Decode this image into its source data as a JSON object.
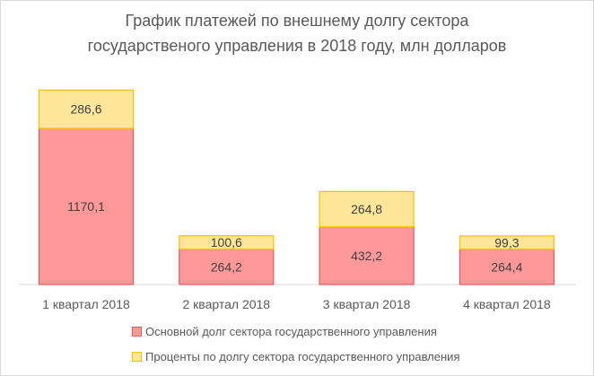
{
  "chart_data": {
    "type": "bar",
    "stacked": true,
    "title": "График платежей по внешнему долгу сектора государственого управления в 2018 году, млн долларов",
    "title_lines": [
      "График платежей по внешнему долгу сектора",
      "государственого управления в 2018 году, млн долларов"
    ],
    "categories": [
      "1 квартал 2018",
      "2 квартал 2018",
      "3 квартал 2018",
      "4 квартал 2018"
    ],
    "series": [
      {
        "name": "Основной долг сектора государственного управления",
        "values": [
          1170.1,
          264.2,
          432.2,
          264.4
        ],
        "labels": [
          "1170,1",
          "264,2",
          "432,2",
          "264,4"
        ],
        "color": "#FF9999",
        "border": "#E05A5A"
      },
      {
        "name": "Проценты по долгу сектора государственного управления",
        "values": [
          286.6,
          100.6,
          264.8,
          99.3
        ],
        "labels": [
          "286,6",
          "100,6",
          "264,8",
          "99,3"
        ],
        "color": "#FFE699",
        "border": "#FFC000"
      }
    ],
    "grid": false,
    "legend": "bottom",
    "y_axis_visible": false
  }
}
